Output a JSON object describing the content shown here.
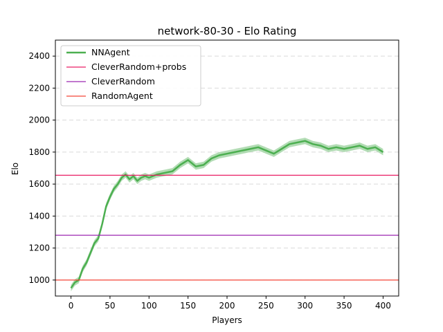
{
  "chart_data": {
    "type": "line",
    "title": "network-80-30 - Elo Rating",
    "xlabel": "Players",
    "ylabel": "Elo",
    "xlim": [
      -20,
      420
    ],
    "ylim": [
      900,
      2500
    ],
    "x_ticks": [
      0,
      50,
      100,
      150,
      200,
      250,
      300,
      350,
      400
    ],
    "y_ticks": [
      1000,
      1200,
      1400,
      1600,
      1800,
      2000,
      2200,
      2400
    ],
    "grid": "y-dashed",
    "legend_position": "top-left",
    "series": [
      {
        "name": "NNAgent",
        "type": "line-with-band",
        "color": "#4caf50",
        "band_color": "#a5d6a7",
        "points": [
          [
            0,
            950
          ],
          [
            5,
            985
          ],
          [
            10,
            1000
          ],
          [
            15,
            1070
          ],
          [
            20,
            1110
          ],
          [
            25,
            1170
          ],
          [
            30,
            1230
          ],
          [
            35,
            1260
          ],
          [
            40,
            1350
          ],
          [
            45,
            1460
          ],
          [
            50,
            1520
          ],
          [
            55,
            1570
          ],
          [
            60,
            1600
          ],
          [
            65,
            1640
          ],
          [
            70,
            1660
          ],
          [
            75,
            1630
          ],
          [
            80,
            1650
          ],
          [
            85,
            1620
          ],
          [
            90,
            1640
          ],
          [
            95,
            1650
          ],
          [
            100,
            1640
          ],
          [
            110,
            1660
          ],
          [
            120,
            1670
          ],
          [
            130,
            1680
          ],
          [
            140,
            1720
          ],
          [
            150,
            1750
          ],
          [
            160,
            1710
          ],
          [
            170,
            1720
          ],
          [
            180,
            1760
          ],
          [
            190,
            1780
          ],
          [
            200,
            1790
          ],
          [
            210,
            1800
          ],
          [
            220,
            1810
          ],
          [
            230,
            1820
          ],
          [
            240,
            1830
          ],
          [
            250,
            1810
          ],
          [
            260,
            1790
          ],
          [
            270,
            1820
          ],
          [
            280,
            1850
          ],
          [
            290,
            1860
          ],
          [
            300,
            1870
          ],
          [
            310,
            1850
          ],
          [
            320,
            1840
          ],
          [
            330,
            1820
          ],
          [
            340,
            1830
          ],
          [
            350,
            1820
          ],
          [
            360,
            1830
          ],
          [
            370,
            1840
          ],
          [
            380,
            1820
          ],
          [
            390,
            1830
          ],
          [
            400,
            1800
          ]
        ],
        "band_width": 40
      },
      {
        "name": "CleverRandom+probs",
        "type": "hline",
        "value": 1655,
        "color": "#e91e63"
      },
      {
        "name": "CleverRandom",
        "type": "hline",
        "value": 1280,
        "color": "#9c27b0"
      },
      {
        "name": "RandomAgent",
        "type": "hline",
        "value": 1000,
        "color": "#f44336"
      }
    ]
  }
}
